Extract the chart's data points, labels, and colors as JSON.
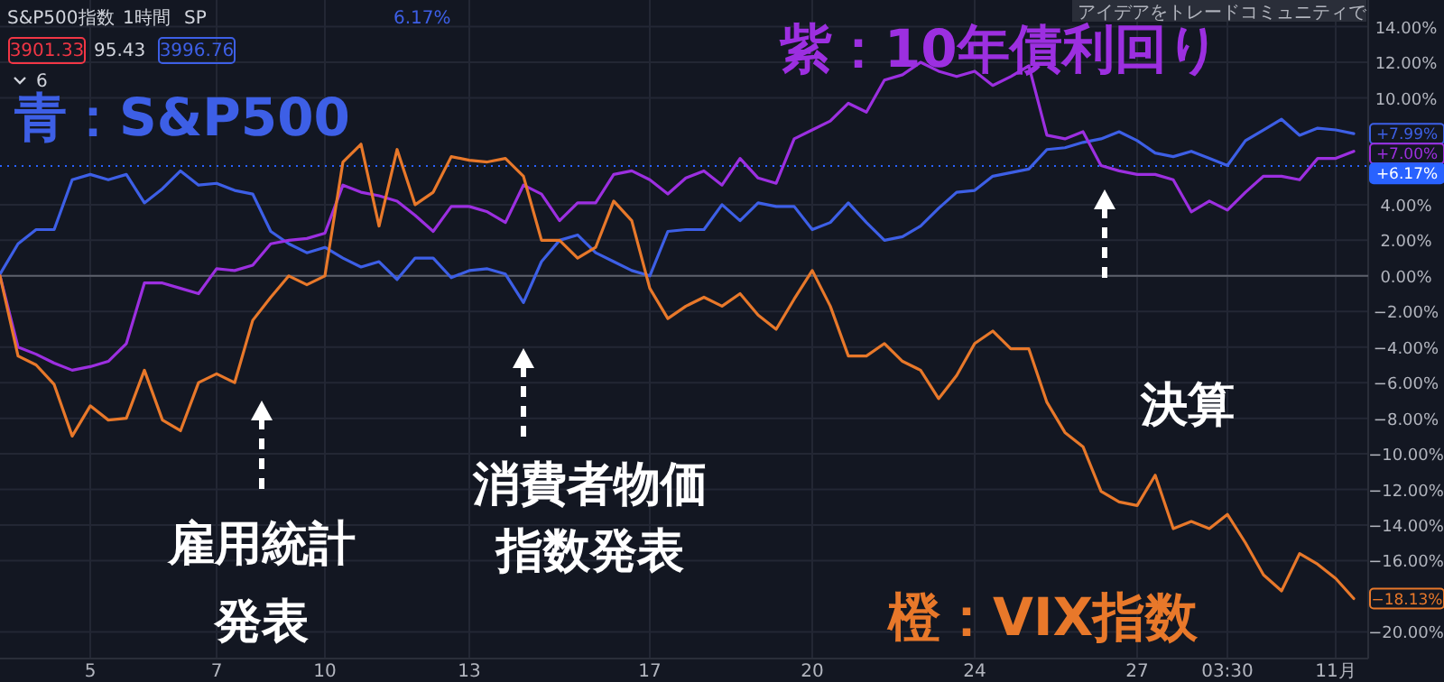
{
  "chart_data": {
    "type": "line",
    "annotations": [
      "S&P500指数",
      "1時間",
      "SP",
      "6.17%",
      "3901.33",
      "95.43",
      "3996.76",
      "6",
      "アイデアをトレードコミュニティで",
      "雇用統計発表",
      "消費者物価指数発表",
      "決算"
    ],
    "categories": [
      null,
      null,
      null,
      null,
      null,
      "5",
      null,
      null,
      null,
      null,
      null,
      null,
      "7",
      null,
      null,
      null,
      null,
      null,
      "10",
      null,
      null,
      null,
      null,
      null,
      null,
      null,
      "13",
      null,
      null,
      null,
      null,
      null,
      null,
      null,
      null,
      null,
      "17",
      null,
      null,
      null,
      null,
      null,
      null,
      null,
      null,
      "20",
      null,
      null,
      null,
      null,
      null,
      null,
      null,
      null,
      "24",
      null,
      null,
      null,
      null,
      null,
      null,
      null,
      null,
      "27",
      null,
      null,
      null,
      null,
      "03:30",
      null,
      null,
      null,
      null,
      null,
      "11月",
      null
    ],
    "ylim": [
      -21.5,
      15.5
    ],
    "yticks": [
      {
        "value": 14,
        "label": "14.00%"
      },
      {
        "value": 12,
        "label": "12.00%"
      },
      {
        "value": 10,
        "label": "10.00%"
      },
      {
        "value": 4,
        "label": "4.00%"
      },
      {
        "value": 2,
        "label": "2.00%"
      },
      {
        "value": 0,
        "label": "0.00%"
      },
      {
        "value": -2,
        "label": "−2.00%"
      },
      {
        "value": -4,
        "label": "−4.00%"
      },
      {
        "value": -6,
        "label": "−6.00%"
      },
      {
        "value": -8,
        "label": "−8.00%"
      },
      {
        "value": -10,
        "label": "−10.00%"
      },
      {
        "value": -12,
        "label": "−12.00%"
      },
      {
        "value": -14,
        "label": "−14.00%"
      },
      {
        "value": -16,
        "label": "−16.00%"
      },
      {
        "value": -20,
        "label": "−20.00%"
      }
    ],
    "grid": true,
    "ref_lines": [
      {
        "axis": "y",
        "value": 0,
        "color": "#5d606b"
      },
      {
        "axis": "y",
        "value": 6.17,
        "label": "+6.17%",
        "color": "#2962ff",
        "line_style": "dotted"
      }
    ],
    "series": [
      {
        "name": "青：S&P500",
        "color": "#3d5fe6",
        "values": [
          0.1,
          1.8,
          2.6,
          2.6,
          5.4,
          5.7,
          5.4,
          5.7,
          4.1,
          4.9,
          5.9,
          5.1,
          5.2,
          4.8,
          4.6,
          2.5,
          1.8,
          1.3,
          1.6,
          1.0,
          0.5,
          0.8,
          -0.2,
          1.0,
          1.0,
          -0.1,
          0.3,
          0.4,
          0.1,
          -1.5,
          0.8,
          2.0,
          2.3,
          1.3,
          0.8,
          0.3,
          0.0,
          2.5,
          2.6,
          2.6,
          4.0,
          3.1,
          4.1,
          3.9,
          3.9,
          2.6,
          3.0,
          4.1,
          3.0,
          2.0,
          2.2,
          2.8,
          3.8,
          4.7,
          4.8,
          5.6,
          5.8,
          6.0,
          7.1,
          7.2,
          7.5,
          7.7,
          8.1,
          7.6,
          6.9,
          6.7,
          7.0,
          6.6,
          6.2,
          7.6,
          8.2,
          8.8,
          7.9,
          8.3,
          8.2,
          7.99
        ],
        "value_labels": [
          null,
          null,
          null,
          null,
          null,
          null,
          null,
          null,
          null,
          null,
          null,
          null,
          null,
          null,
          null,
          null,
          null,
          null,
          null,
          null,
          null,
          null,
          null,
          null,
          null,
          null,
          null,
          null,
          null,
          null,
          null,
          null,
          null,
          null,
          null,
          null,
          null,
          null,
          null,
          null,
          null,
          null,
          null,
          null,
          null,
          null,
          null,
          null,
          null,
          null,
          null,
          null,
          null,
          null,
          null,
          null,
          null,
          null,
          null,
          null,
          null,
          null,
          null,
          null,
          null,
          null,
          null,
          null,
          null,
          null,
          null,
          null,
          null,
          null,
          null,
          "+7.99%"
        ]
      },
      {
        "name": "紫：10年債利回り",
        "color": "#9c2fe0",
        "values": [
          0.0,
          -4.0,
          -4.4,
          -4.9,
          -5.3,
          -5.1,
          -4.8,
          -3.8,
          -0.4,
          -0.4,
          -0.7,
          -1.0,
          0.4,
          0.3,
          0.6,
          1.8,
          2.0,
          2.1,
          2.4,
          5.1,
          4.7,
          4.5,
          4.2,
          3.4,
          2.5,
          3.9,
          3.9,
          3.6,
          3.0,
          5.1,
          4.6,
          3.1,
          4.1,
          4.1,
          5.7,
          5.9,
          5.4,
          4.6,
          5.5,
          5.9,
          5.1,
          6.6,
          5.5,
          5.2,
          7.7,
          8.2,
          8.7,
          9.7,
          9.2,
          11.0,
          11.3,
          12.0,
          11.5,
          11.2,
          11.5,
          10.7,
          11.2,
          11.8,
          7.9,
          7.7,
          8.1,
          6.2,
          5.9,
          5.7,
          5.7,
          5.4,
          3.6,
          4.2,
          3.7,
          4.7,
          5.6,
          5.6,
          5.4,
          6.6,
          6.6,
          7.0
        ],
        "value_labels": [
          null,
          null,
          null,
          null,
          null,
          null,
          null,
          null,
          null,
          null,
          null,
          null,
          null,
          null,
          null,
          null,
          null,
          null,
          null,
          null,
          null,
          null,
          null,
          null,
          null,
          null,
          null,
          null,
          null,
          null,
          null,
          null,
          null,
          null,
          null,
          null,
          null,
          null,
          null,
          null,
          null,
          null,
          null,
          null,
          null,
          null,
          null,
          null,
          null,
          null,
          null,
          null,
          null,
          null,
          null,
          null,
          null,
          null,
          null,
          null,
          null,
          null,
          null,
          null,
          null,
          null,
          null,
          null,
          null,
          null,
          null,
          null,
          null,
          null,
          null,
          "+7.00%"
        ]
      },
      {
        "name": "橙：VIX指数",
        "color": "#e8782a",
        "values": [
          0,
          -4.5,
          -5.0,
          -6.1,
          -9.0,
          -7.3,
          -8.1,
          -8.0,
          -5.3,
          -8.1,
          -8.7,
          -6.0,
          -5.5,
          -6.0,
          -2.5,
          -1.2,
          0.0,
          -0.5,
          0.0,
          6.4,
          7.4,
          2.8,
          7.1,
          4.0,
          4.7,
          6.7,
          6.5,
          6.4,
          6.6,
          5.6,
          2.0,
          2.0,
          1.0,
          1.6,
          4.2,
          3.1,
          -0.7,
          -2.4,
          -1.7,
          -1.2,
          -1.7,
          -1.0,
          -2.2,
          -3.0,
          -1.3,
          0.3,
          -1.7,
          -4.5,
          -4.5,
          -3.8,
          -4.8,
          -5.3,
          -6.9,
          -5.6,
          -3.8,
          -3.1,
          -4.1,
          -4.1,
          -7.1,
          -8.8,
          -9.6,
          -12.1,
          -12.7,
          -12.9,
          -11.2,
          -14.2,
          -13.8,
          -14.2,
          -13.4,
          -15.0,
          -16.8,
          -17.7,
          -15.6,
          -16.2,
          -17.0,
          -18.13
        ],
        "value_labels": [
          null,
          null,
          null,
          null,
          null,
          null,
          null,
          null,
          null,
          null,
          null,
          null,
          null,
          null,
          null,
          null,
          null,
          null,
          null,
          null,
          null,
          null,
          null,
          null,
          null,
          null,
          null,
          null,
          null,
          null,
          null,
          null,
          null,
          null,
          null,
          null,
          null,
          null,
          null,
          null,
          null,
          null,
          null,
          null,
          null,
          null,
          null,
          null,
          null,
          null,
          null,
          null,
          null,
          null,
          null,
          null,
          null,
          null,
          null,
          null,
          null,
          null,
          null,
          null,
          null,
          null,
          null,
          null,
          null,
          null,
          null,
          null,
          null,
          null,
          null,
          "−18.13%"
        ]
      }
    ]
  }
}
